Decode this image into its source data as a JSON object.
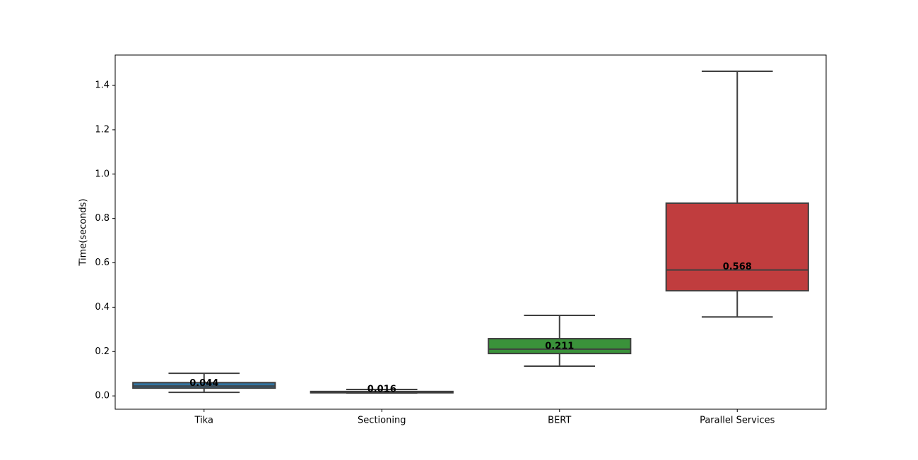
{
  "chart_data": {
    "type": "box",
    "y_label": "Time(seconds)",
    "categories": [
      "Tika",
      "Sectioning",
      "BERT",
      "Parallel Services"
    ],
    "colors": [
      "#3274a1",
      "#e1812c",
      "#3a923a",
      "#c03d3e"
    ],
    "whisker_low": [
      0.016,
      0.013,
      0.134,
      0.356
    ],
    "q1": [
      0.035,
      0.014,
      0.191,
      0.474
    ],
    "median": [
      0.044,
      0.016,
      0.211,
      0.568
    ],
    "q3": [
      0.06,
      0.02,
      0.258,
      0.869
    ],
    "whisker_high": [
      0.102,
      0.029,
      0.363,
      1.464
    ],
    "ylim": [
      -0.06,
      1.537
    ],
    "yticks": [
      {
        "value": 0,
        "label": "0.0"
      },
      0.2,
      0.4,
      0.6,
      0.8,
      {
        "value": 1,
        "label": "1.0"
      },
      1.2,
      1.4
    ]
  }
}
